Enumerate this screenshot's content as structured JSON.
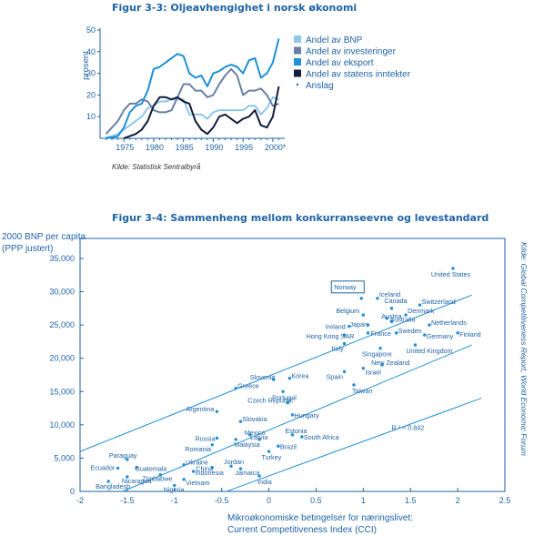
{
  "chart_data": [
    {
      "type": "line",
      "title": "Figur 3-3: Oljeavhengighet i norsk økonomi",
      "ylabel": "prosent",
      "xlabel": "",
      "ylim": [
        0,
        50
      ],
      "xlim": [
        1971,
        2002
      ],
      "yticks": [
        10,
        20,
        30,
        40,
        50
      ],
      "xticks": [
        "1975",
        "1980",
        "1985",
        "1990",
        "1995",
        "2000*"
      ],
      "x": [
        1972,
        1973,
        1974,
        1975,
        1976,
        1977,
        1978,
        1979,
        1980,
        1981,
        1982,
        1983,
        1984,
        1985,
        1986,
        1987,
        1988,
        1989,
        1990,
        1991,
        1992,
        1993,
        1994,
        1995,
        1996,
        1997,
        1998,
        1999,
        2000,
        2001
      ],
      "series": [
        {
          "name": "Andel av BNP",
          "color": "#8fc8ec",
          "values": [
            0.5,
            1,
            2,
            4,
            6,
            8,
            10,
            14,
            15,
            17,
            17,
            18,
            18,
            18,
            11,
            11,
            11,
            9,
            12,
            13,
            13,
            13,
            13,
            13,
            15,
            15,
            11,
            14,
            19,
            18
          ]
        },
        {
          "name": "Andel av investeringer",
          "color": "#6b7fa8",
          "values": [
            2,
            5,
            8,
            13,
            16,
            16,
            18,
            17,
            13,
            12,
            12,
            13,
            19,
            25,
            25,
            22,
            22,
            19,
            20,
            25,
            29,
            32,
            29,
            20,
            22,
            22,
            23,
            20,
            15,
            16
          ]
        },
        {
          "name": "Andel av eksport",
          "color": "#1f8fd6",
          "values": [
            0,
            0.5,
            1,
            5,
            12,
            15,
            16,
            22,
            32,
            33,
            35,
            37,
            39,
            38,
            30,
            28,
            29,
            24,
            30,
            31,
            33,
            34,
            33,
            30,
            36,
            37,
            28,
            30,
            35,
            46
          ]
        },
        {
          "name": "Andel av statens inntekter",
          "color": "#141b3c",
          "values": [
            null,
            null,
            null,
            0,
            1,
            2,
            4,
            8,
            15,
            19,
            19,
            18,
            19,
            17,
            16,
            8,
            4,
            2,
            5,
            10,
            11,
            9,
            7,
            9,
            10,
            13,
            6,
            5,
            10,
            24
          ]
        }
      ],
      "legend_extra": "Anslag",
      "source": "Kilde: Statistisk Sentralbyrå"
    },
    {
      "type": "scatter",
      "title": "Figur 3-4: Sammenheng mellom konkurranseevne og levestandard",
      "ylabel_lines": [
        "2000 BNP per capita",
        "(PPP justert)"
      ],
      "xlabel_lines": [
        "Mikroøkonomiske betingelser for næringslivet:",
        "Current Competitiveness Index (CCI)"
      ],
      "xlim": [
        -2,
        2.5
      ],
      "ylim": [
        0,
        38000
      ],
      "xticks": [
        "-2",
        "-1.5",
        "-1",
        "-0.5",
        "0",
        "0.5",
        "1",
        "1.5",
        "2",
        "2.5"
      ],
      "yticks": [
        "0",
        "5,000",
        "10,000",
        "15,000",
        "20,000",
        "25,000",
        "30,000",
        "35,000"
      ],
      "annotation": "R ² = 0.842",
      "source_side": "Kilde: Global Competitiveness Report, World Economic Forum",
      "highlight": "Norway",
      "points": [
        {
          "label": "United States",
          "x": 1.95,
          "y": 33500
        },
        {
          "label": "Norway",
          "x": 0.98,
          "y": 29000
        },
        {
          "label": "Iceland",
          "x": 1.15,
          "y": 29000
        },
        {
          "label": "Switzerland",
          "x": 1.6,
          "y": 28000
        },
        {
          "label": "Canada",
          "x": 1.3,
          "y": 27500
        },
        {
          "label": "Denmark",
          "x": 1.45,
          "y": 26500
        },
        {
          "label": "Belgium",
          "x": 1.0,
          "y": 26500
        },
        {
          "label": "Austria",
          "x": 1.25,
          "y": 26000
        },
        {
          "label": "Australia",
          "x": 1.3,
          "y": 25500
        },
        {
          "label": "Japan",
          "x": 1.05,
          "y": 25000
        },
        {
          "label": "Netherlands",
          "x": 1.7,
          "y": 25000
        },
        {
          "label": "Ireland",
          "x": 0.85,
          "y": 24800
        },
        {
          "label": "France",
          "x": 1.05,
          "y": 23800
        },
        {
          "label": "Sweden",
          "x": 1.35,
          "y": 23800
        },
        {
          "label": "Germany",
          "x": 1.65,
          "y": 23500
        },
        {
          "label": "Finland",
          "x": 2.0,
          "y": 23800
        },
        {
          "label": "Hong Kong SAR",
          "x": 0.8,
          "y": 23500
        },
        {
          "label": "Italy",
          "x": 0.8,
          "y": 22200
        },
        {
          "label": "United Kingdom",
          "x": 1.55,
          "y": 22000
        },
        {
          "label": "Singapore",
          "x": 1.18,
          "y": 21500
        },
        {
          "label": "New Zealand",
          "x": 1.2,
          "y": 19000
        },
        {
          "label": "Spain",
          "x": 0.8,
          "y": 18000
        },
        {
          "label": "Israel",
          "x": 1.0,
          "y": 18500
        },
        {
          "label": "Taiwan",
          "x": 0.9,
          "y": 16000
        },
        {
          "label": "Slovenia",
          "x": 0.05,
          "y": 16800
        },
        {
          "label": "Greece",
          "x": -0.35,
          "y": 15500
        },
        {
          "label": "Korea",
          "x": 0.22,
          "y": 17000
        },
        {
          "label": "Portugal",
          "x": 0.15,
          "y": 15000
        },
        {
          "label": "Czech Republic",
          "x": 0.2,
          "y": 13300
        },
        {
          "label": "Hungary",
          "x": 0.25,
          "y": 11500
        },
        {
          "label": "Argentina",
          "x": -0.55,
          "y": 12000
        },
        {
          "label": "Slovakia",
          "x": -0.3,
          "y": 10500
        },
        {
          "label": "Mexico",
          "x": -0.2,
          "y": 8500
        },
        {
          "label": "Russia",
          "x": -0.55,
          "y": 8000
        },
        {
          "label": "Latvia",
          "x": -0.1,
          "y": 7800
        },
        {
          "label": "Estonia",
          "x": 0.25,
          "y": 8500
        },
        {
          "label": "South Africa",
          "x": 0.35,
          "y": 8200
        },
        {
          "label": "Malaysia",
          "x": -0.35,
          "y": 7800
        },
        {
          "label": "Romania",
          "x": -0.6,
          "y": 7000
        },
        {
          "label": "Brazil",
          "x": 0.1,
          "y": 6800
        },
        {
          "label": "Turkey",
          "x": 0.0,
          "y": 6000
        },
        {
          "label": "Paraguay",
          "x": -1.5,
          "y": 4800
        },
        {
          "label": "Ukraine",
          "x": -0.9,
          "y": 4000
        },
        {
          "label": "Ecuador",
          "x": -1.6,
          "y": 3500
        },
        {
          "label": "Guatemala",
          "x": -1.4,
          "y": 3600
        },
        {
          "label": "Jordan",
          "x": -0.4,
          "y": 3800
        },
        {
          "label": "China",
          "x": -0.6,
          "y": 3600
        },
        {
          "label": "Zimbabwe",
          "x": -1.15,
          "y": 2500
        },
        {
          "label": "Jamaica",
          "x": -0.3,
          "y": 3400
        },
        {
          "label": "Indonesia",
          "x": -0.8,
          "y": 3000
        },
        {
          "label": "Nicaragua",
          "x": -1.5,
          "y": 2200
        },
        {
          "label": "Vietnam",
          "x": -0.9,
          "y": 1800
        },
        {
          "label": "India",
          "x": -0.1,
          "y": 2300
        },
        {
          "label": "Bangladesh",
          "x": -1.7,
          "y": 1500
        },
        {
          "label": "Nigeria",
          "x": -1.0,
          "y": 900
        }
      ]
    }
  ]
}
